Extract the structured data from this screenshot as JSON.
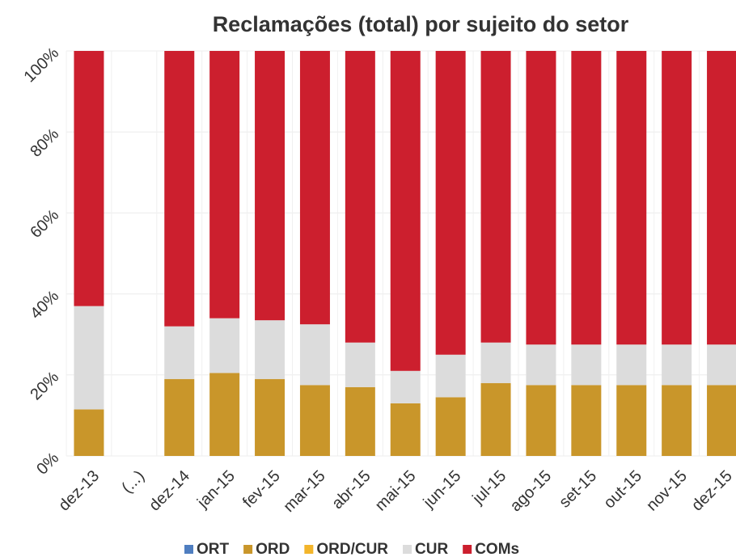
{
  "chart_data": {
    "type": "stacked_bar",
    "title": "Reclamações (total) por sujeito do setor",
    "categories": [
      "dez-13",
      "(...)",
      "dez-14",
      "jan-15",
      "fev-15",
      "mar-15",
      "abr-15",
      "mai-15",
      "jun-15",
      "jul-15",
      "ago-15",
      "set-15",
      "out-15",
      "nov-15",
      "dez-15"
    ],
    "series": [
      {
        "name": "ORT",
        "color": "#4f7ec0",
        "values": [
          0,
          null,
          0,
          0,
          0,
          0,
          0,
          0,
          0,
          0,
          0,
          0,
          0,
          0,
          0
        ]
      },
      {
        "name": "ORD",
        "color": "#c9962a",
        "values": [
          11.5,
          null,
          19,
          20.5,
          19,
          17.5,
          17,
          13,
          14.5,
          18,
          17.5,
          17.5,
          17.5,
          17.5,
          17.5
        ]
      },
      {
        "name": "ORD/CUR",
        "color": "#f3b52a",
        "values": [
          0,
          null,
          0,
          0,
          0,
          0,
          0,
          0,
          0,
          0,
          0,
          0,
          0,
          0,
          0
        ]
      },
      {
        "name": "CUR",
        "color": "#dcdcdc",
        "values": [
          25.5,
          null,
          13,
          13.5,
          14.5,
          15,
          11,
          8,
          10.5,
          10,
          10,
          10,
          10,
          10,
          10
        ]
      },
      {
        "name": "COMs",
        "color": "#cc1f2e",
        "values": [
          63,
          null,
          68,
          66,
          66.5,
          67.5,
          72,
          79,
          75,
          72,
          72.5,
          72.5,
          72.5,
          72.5,
          72.5
        ]
      }
    ],
    "ylim": [
      0,
      100
    ],
    "yticks": [
      {
        "value": 0,
        "label": "0%"
      },
      {
        "value": 20,
        "label": "20%"
      },
      {
        "value": 40,
        "label": "40%"
      },
      {
        "value": 60,
        "label": "60%"
      },
      {
        "value": 80,
        "label": "80%"
      },
      {
        "value": 100,
        "label": "100%"
      }
    ],
    "grid": true,
    "legend": "bottom"
  }
}
